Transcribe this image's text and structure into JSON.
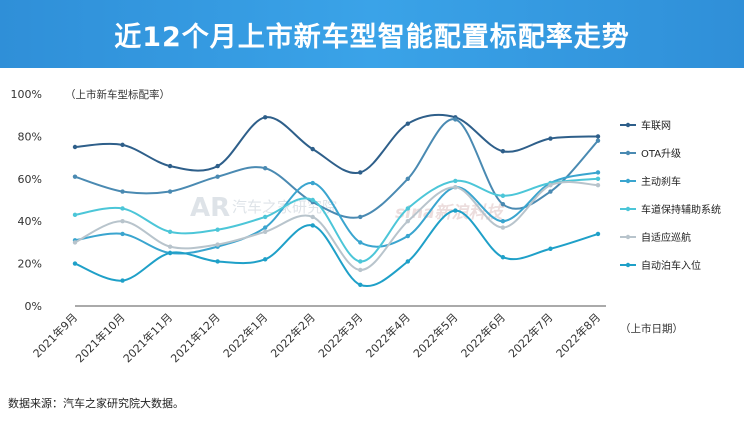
{
  "header": {
    "title": "近12个月上市新车型智能配置标配率走势"
  },
  "footer": {
    "source": "数据来源：汽车之家研究院大数据。"
  },
  "watermark": {
    "brand": "AR",
    "text1": "汽车之家研究院",
    "text2": "sina新浪科技"
  },
  "chart_data": {
    "type": "line",
    "title": "近12个月上市新车型智能配置标配率走势",
    "ylabel": "（上市新车型标配率）",
    "xlabel": "（上市日期）",
    "ylim": [
      0,
      100
    ],
    "yticks": [
      "0%",
      "20%",
      "40%",
      "60%",
      "80%",
      "100%"
    ],
    "yticks_values": [
      0,
      20,
      40,
      60,
      80,
      100
    ],
    "legend_position": "right",
    "grid": false,
    "categories": [
      "2021年9月",
      "2021年10月",
      "2021年11月",
      "2021年12月",
      "2022年1月",
      "2022年2月",
      "2022年3月",
      "2022年4月",
      "2022年5月",
      "2022年6月",
      "2022年7月",
      "2022年8月"
    ],
    "series": [
      {
        "name": "车联网",
        "color": "#2e5f8a",
        "values": [
          75,
          76,
          66,
          66,
          89,
          74,
          63,
          86,
          89,
          73,
          79,
          80
        ]
      },
      {
        "name": "OTA升级",
        "color": "#4a8ab2",
        "values": [
          61,
          54,
          54,
          61,
          65,
          49,
          42,
          60,
          88,
          48,
          54,
          78
        ]
      },
      {
        "name": "主动刹车",
        "color": "#3aa5cf",
        "values": [
          31,
          34,
          25,
          28,
          37,
          58,
          30,
          33,
          56,
          40,
          58,
          63
        ]
      },
      {
        "name": "车道保持辅助系统",
        "color": "#4cc6d8",
        "values": [
          43,
          46,
          35,
          36,
          42,
          50,
          21,
          46,
          59,
          52,
          58,
          60
        ]
      },
      {
        "name": "自适应巡航",
        "color": "#b8c4cc",
        "values": [
          30,
          40,
          28,
          29,
          35,
          42,
          17,
          40,
          56,
          37,
          57,
          57
        ]
      },
      {
        "name": "自动泊车入位",
        "color": "#1fa0c8",
        "values": [
          20,
          12,
          25,
          21,
          22,
          38,
          10,
          21,
          45,
          23,
          27,
          34
        ]
      }
    ]
  }
}
